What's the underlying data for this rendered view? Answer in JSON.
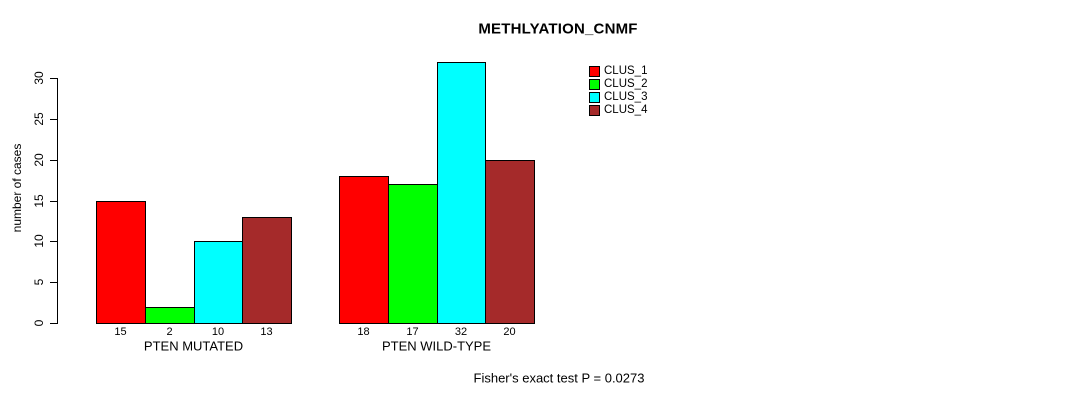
{
  "chart_data": {
    "type": "bar",
    "title": "METHLYATION_CNMF",
    "ylabel": "number of cases",
    "xlabel": "",
    "footnote": "Fisher's exact test P = 0.0273",
    "categories": [
      "PTEN MUTATED",
      "PTEN WILD-TYPE"
    ],
    "series": [
      {
        "name": "CLUS_1",
        "color": "#FF0000",
        "values": [
          15,
          18
        ]
      },
      {
        "name": "CLUS_2",
        "color": "#00FF00",
        "values": [
          2,
          17
        ]
      },
      {
        "name": "CLUS_3",
        "color": "#00FFFF",
        "values": [
          10,
          32
        ]
      },
      {
        "name": "CLUS_4",
        "color": "#A52A2A",
        "values": [
          13,
          20
        ]
      }
    ],
    "bar_value_labels": [
      [
        15,
        2,
        10,
        13
      ],
      [
        18,
        17,
        32,
        20
      ]
    ],
    "y_ticks": [
      0,
      5,
      10,
      15,
      20,
      25,
      30
    ],
    "ylim": [
      0,
      32.6
    ],
    "grid": false,
    "legend_position": "top-right",
    "axis_color": "#000000",
    "text_color": "#000000",
    "background_color": "#FFFFFF",
    "bar_border_color": "#000000"
  }
}
